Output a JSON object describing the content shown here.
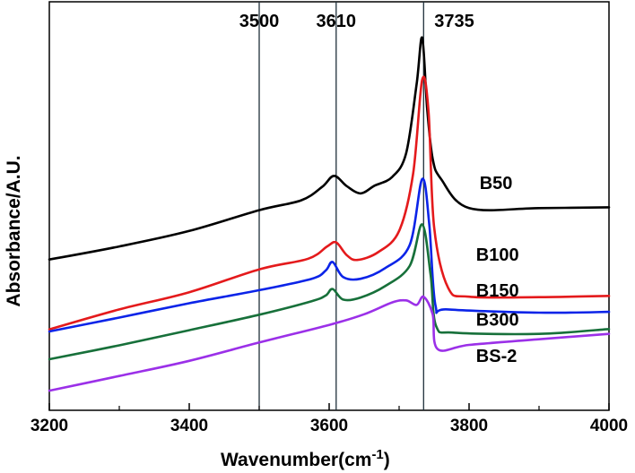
{
  "chart_data": {
    "type": "line",
    "title": "",
    "xlabel": "Wavenumber(cm",
    "xlabel_sup": "-1",
    "xlabel_close": ")",
    "ylabel": "Absorbance/A.U.",
    "xlim": [
      3200,
      4000
    ],
    "ylim": [
      0,
      10
    ],
    "x_ticks": [
      3200,
      3400,
      3600,
      3800,
      4000
    ],
    "x_tick_labels": [
      "3200",
      "3400",
      "3600",
      "3800",
      "4000"
    ],
    "y_ticks_shown": false,
    "grid": false,
    "reference_lines": [
      {
        "x": 3500,
        "label": "3500"
      },
      {
        "x": 3610,
        "label": "3610"
      },
      {
        "x": 3735,
        "label": "3735"
      }
    ],
    "series": [
      {
        "name": "B50",
        "color": "#000000",
        "label_pos": [
          3815,
          5.42
        ],
        "points": [
          [
            3200,
            3.69
          ],
          [
            3300,
            4.01
          ],
          [
            3400,
            4.39
          ],
          [
            3500,
            4.9
          ],
          [
            3560,
            5.14
          ],
          [
            3590,
            5.47
          ],
          [
            3607,
            5.74
          ],
          [
            3625,
            5.49
          ],
          [
            3645,
            5.31
          ],
          [
            3665,
            5.5
          ],
          [
            3690,
            5.71
          ],
          [
            3710,
            6.29
          ],
          [
            3725,
            7.98
          ],
          [
            3733,
            9.12
          ],
          [
            3740,
            7.4
          ],
          [
            3748,
            6.16
          ],
          [
            3760,
            5.66
          ],
          [
            3800,
            4.95
          ],
          [
            3900,
            4.95
          ],
          [
            4000,
            4.97
          ]
        ]
      },
      {
        "name": "B100",
        "color": "#e41a1c",
        "label_pos": [
          3810,
          3.66
        ],
        "points": [
          [
            3200,
            1.98
          ],
          [
            3300,
            2.47
          ],
          [
            3400,
            2.89
          ],
          [
            3500,
            3.45
          ],
          [
            3570,
            3.71
          ],
          [
            3597,
            4.01
          ],
          [
            3610,
            4.11
          ],
          [
            3625,
            3.8
          ],
          [
            3640,
            3.68
          ],
          [
            3670,
            3.87
          ],
          [
            3700,
            4.39
          ],
          [
            3720,
            5.79
          ],
          [
            3733,
            8.09
          ],
          [
            3742,
            7.31
          ],
          [
            3750,
            4.49
          ],
          [
            3770,
            3.0
          ],
          [
            3800,
            2.78
          ],
          [
            3900,
            2.77
          ],
          [
            4000,
            2.8
          ]
        ]
      },
      {
        "name": "B150",
        "color": "#0b24e8",
        "label_pos": [
          3810,
          2.79
        ],
        "points": [
          [
            3200,
            1.93
          ],
          [
            3300,
            2.27
          ],
          [
            3400,
            2.62
          ],
          [
            3500,
            2.94
          ],
          [
            3575,
            3.22
          ],
          [
            3595,
            3.42
          ],
          [
            3605,
            3.63
          ],
          [
            3620,
            3.26
          ],
          [
            3645,
            3.22
          ],
          [
            3680,
            3.48
          ],
          [
            3715,
            4.04
          ],
          [
            3733,
            5.66
          ],
          [
            3743,
            4.58
          ],
          [
            3752,
            2.56
          ],
          [
            3770,
            2.47
          ],
          [
            3900,
            2.39
          ],
          [
            4000,
            2.41
          ]
        ]
      },
      {
        "name": "B300",
        "color": "#17703a",
        "label_pos": [
          3810,
          2.07
        ],
        "points": [
          [
            3200,
            1.25
          ],
          [
            3300,
            1.59
          ],
          [
            3400,
            1.96
          ],
          [
            3500,
            2.34
          ],
          [
            3575,
            2.67
          ],
          [
            3595,
            2.81
          ],
          [
            3605,
            2.97
          ],
          [
            3620,
            2.71
          ],
          [
            3645,
            2.76
          ],
          [
            3680,
            3.04
          ],
          [
            3715,
            3.53
          ],
          [
            3733,
            4.55
          ],
          [
            3745,
            3.32
          ],
          [
            3753,
            2.06
          ],
          [
            3780,
            1.9
          ],
          [
            3900,
            1.87
          ],
          [
            4000,
            1.99
          ]
        ]
      },
      {
        "name": "BS-2",
        "color": "#9b30e8",
        "label_pos": [
          3810,
          1.18
        ],
        "points": [
          [
            3200,
            0.48
          ],
          [
            3300,
            0.84
          ],
          [
            3400,
            1.21
          ],
          [
            3500,
            1.66
          ],
          [
            3600,
            2.09
          ],
          [
            3650,
            2.35
          ],
          [
            3690,
            2.64
          ],
          [
            3710,
            2.69
          ],
          [
            3725,
            2.58
          ],
          [
            3735,
            2.78
          ],
          [
            3748,
            2.35
          ],
          [
            3755,
            1.5
          ],
          [
            3800,
            1.6
          ],
          [
            3900,
            1.74
          ],
          [
            4000,
            1.87
          ]
        ]
      }
    ]
  }
}
